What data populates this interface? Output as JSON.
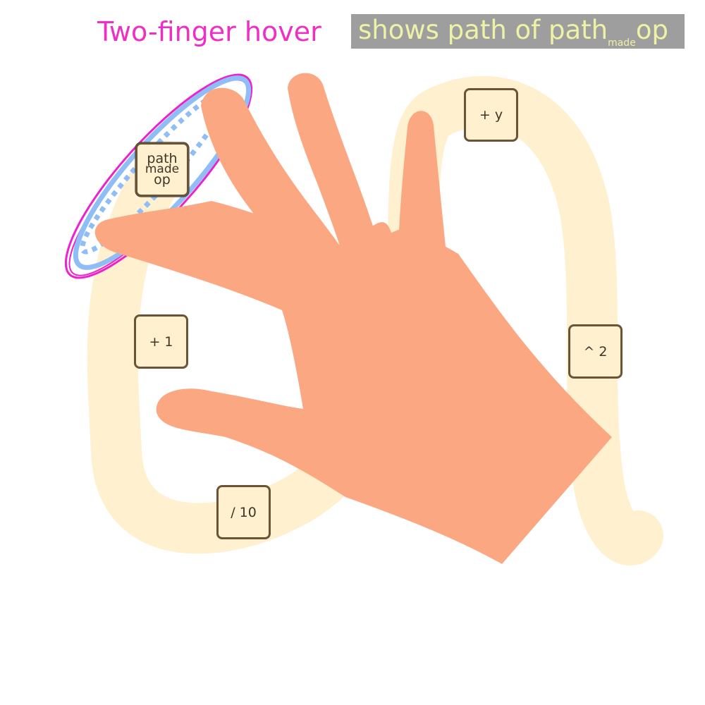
{
  "title": "Two-finger hover",
  "caption": {
    "prefix": "shows path of ",
    "word": "path",
    "sub": "made",
    "suffix": "op"
  },
  "ops": {
    "path_made": {
      "line1": "path",
      "line2": "made",
      "line3": "op"
    },
    "plus_y": "+ y",
    "plus_1": "+ 1",
    "pow_2": "^ 2",
    "div_10": "/ 10"
  },
  "colors": {
    "path": "#fff0cf",
    "op_border": "#6b5436",
    "hand": "#fba882",
    "selection_outer": "#ee22cc",
    "selection_inner": "#8fbdf5",
    "title": "#ee2fc6",
    "caption_bg": "#9e9e9e",
    "caption_text": "#eef2a6"
  }
}
